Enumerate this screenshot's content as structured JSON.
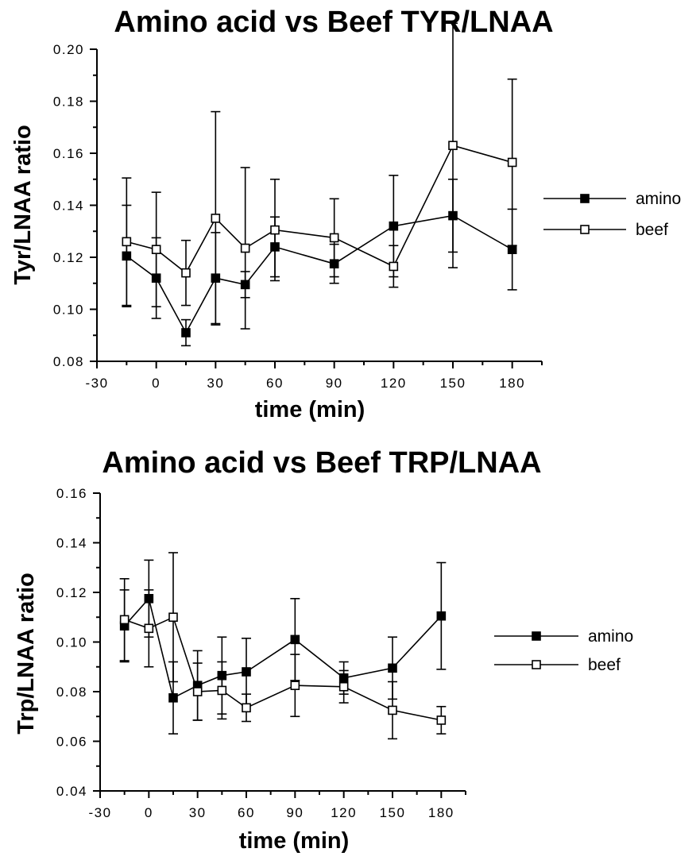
{
  "chart_data": [
    {
      "type": "line",
      "title": "Amino acid vs Beef TYR/LNAA",
      "xlabel": "time (min)",
      "ylabel": "Tyr/LNAA ratio",
      "xlim": [
        -30,
        195
      ],
      "ylim": [
        0.08,
        0.2
      ],
      "xticks": [
        -30,
        0,
        30,
        60,
        90,
        120,
        150,
        180
      ],
      "xtick_labels": [
        "-30",
        "0",
        "30",
        "60",
        "90",
        "120",
        "150",
        "180"
      ],
      "yticks": [
        0.08,
        0.1,
        0.12,
        0.14,
        0.16,
        0.18,
        0.2
      ],
      "ytick_labels": [
        "0.08",
        "0.10",
        "0.12",
        "0.14",
        "0.16",
        "0.18",
        "0.20"
      ],
      "legend_position": "right",
      "x": [
        -15,
        0,
        15,
        30,
        45,
        60,
        90,
        120,
        150,
        180
      ],
      "series": [
        {
          "name": "amino",
          "marker": "filled-square",
          "values": [
            0.1205,
            0.112,
            0.091,
            0.112,
            0.1095,
            0.124,
            0.1175,
            0.132,
            0.136,
            0.123
          ],
          "error": [
            0.0195,
            0.0155,
            0.005,
            0.0175,
            0.005,
            0.0115,
            0.0075,
            0.0195,
            0.014,
            0.0155
          ]
        },
        {
          "name": "beef",
          "marker": "open-square",
          "values": [
            0.126,
            0.123,
            0.114,
            0.135,
            0.1235,
            0.1305,
            0.1275,
            0.1165,
            0.163,
            0.1565
          ],
          "error": [
            0.0245,
            0.022,
            0.0125,
            0.041,
            0.031,
            0.0195,
            0.015,
            0.008,
            0.047,
            0.032
          ]
        }
      ]
    },
    {
      "type": "line",
      "title": "Amino acid vs Beef TRP/LNAA",
      "xlabel": "time (min)",
      "ylabel": "Trp/LNAA ratio",
      "xlim": [
        -30,
        195
      ],
      "ylim": [
        0.04,
        0.16
      ],
      "xticks": [
        -30,
        0,
        30,
        60,
        90,
        120,
        150,
        180
      ],
      "xtick_labels": [
        "-30",
        "0",
        "30",
        "60",
        "90",
        "120",
        "150",
        "180"
      ],
      "yticks": [
        0.04,
        0.06,
        0.08,
        0.1,
        0.12,
        0.14,
        0.16
      ],
      "ytick_labels": [
        "0.04",
        "0.06",
        "0.08",
        "0.10",
        "0.12",
        "0.14",
        "0.16"
      ],
      "legend_position": "right",
      "x": [
        -15,
        0,
        15,
        30,
        45,
        60,
        90,
        120,
        150,
        180
      ],
      "series": [
        {
          "name": "amino",
          "marker": "filled-square",
          "values": [
            0.1065,
            0.1175,
            0.0775,
            0.0825,
            0.0865,
            0.088,
            0.101,
            0.0855,
            0.0895,
            0.1105
          ],
          "error": [
            0.0145,
            0.0155,
            0.0145,
            0.014,
            0.0155,
            0.0135,
            0.0165,
            0.0065,
            0.0125,
            0.0215
          ]
        },
        {
          "name": "beef",
          "marker": "open-square",
          "values": [
            0.109,
            0.1055,
            0.11,
            0.08,
            0.0805,
            0.0735,
            0.0825,
            0.082,
            0.0725,
            0.0685
          ],
          "error": [
            0.0165,
            0.0155,
            0.026,
            0.0115,
            0.0115,
            0.0055,
            0.0125,
            0.0065,
            0.0115,
            0.0055
          ]
        }
      ]
    }
  ]
}
